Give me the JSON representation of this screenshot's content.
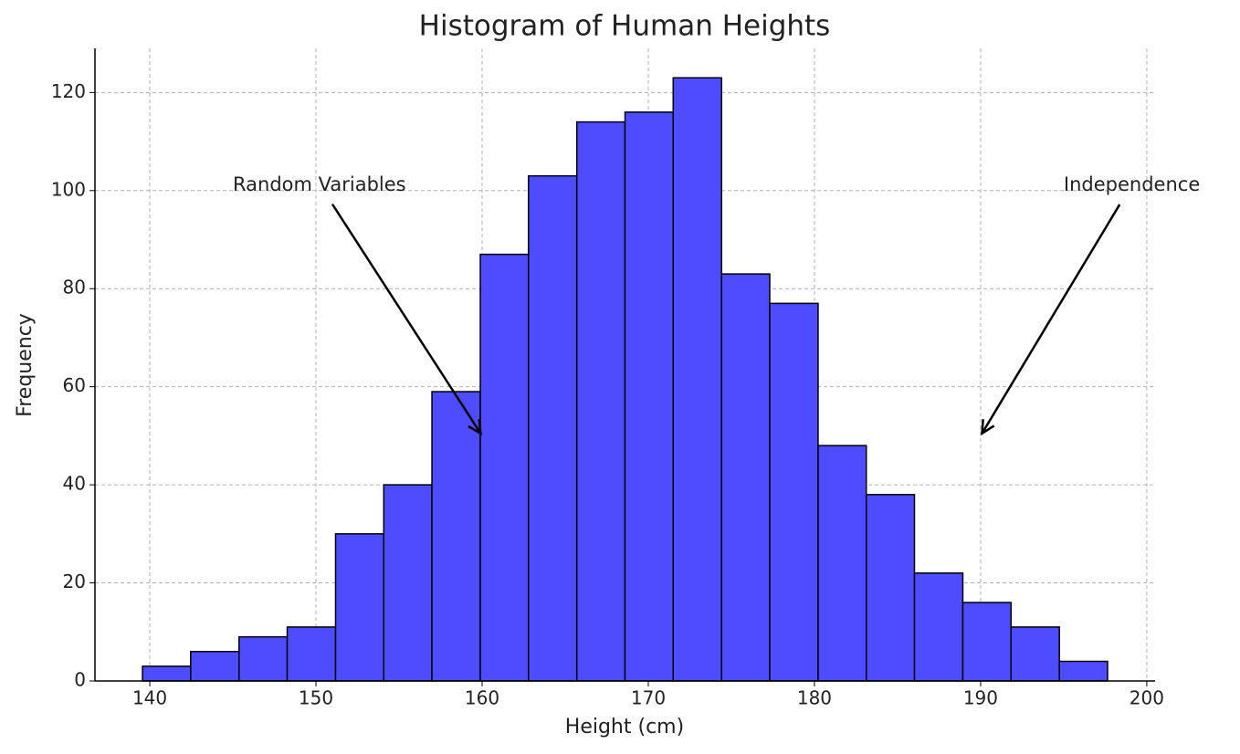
{
  "chart_data": {
    "type": "histogram",
    "title": "Histogram of Human Heights",
    "x_label": "Height (cm)",
    "y_label": "Frequency",
    "bins": [
      139.56,
      142.46,
      145.37,
      148.27,
      151.18,
      154.08,
      156.98,
      159.89,
      162.79,
      165.7,
      168.6,
      171.5,
      174.41,
      177.31,
      180.22,
      183.12,
      186.02,
      188.93,
      191.83,
      194.74,
      197.64
    ],
    "values": [
      3,
      6,
      9,
      11,
      30,
      40,
      59,
      87,
      103,
      114,
      116,
      123,
      83,
      77,
      48,
      38,
      22,
      16,
      11,
      4
    ],
    "color": "#4d4dff",
    "edgecolor": "#000000",
    "xlim": [
      136.7,
      200.5
    ],
    "xticks": [
      140,
      150,
      160,
      170,
      180,
      190,
      200
    ],
    "ylim": [
      0,
      129
    ],
    "yticks": [
      0,
      20,
      40,
      60,
      80,
      100,
      120
    ],
    "grid": true,
    "annotations": [
      {
        "text": "Random Variables",
        "x": 160,
        "y": 50,
        "text_x": 145,
        "text_y": 100
      },
      {
        "text": "Independence",
        "x": 190,
        "y": 50,
        "text_x": 195,
        "text_y": 100
      }
    ]
  }
}
